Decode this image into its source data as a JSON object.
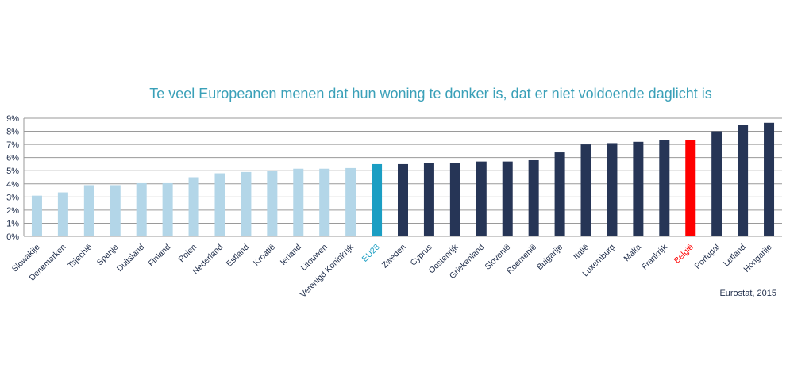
{
  "chart_data": {
    "type": "bar",
    "title": "Te veel Europeanen menen dat hun woning te donker is, dat er niet voldoende daglicht is",
    "source": "Eurostat, 2015",
    "xlabel": "",
    "ylabel": "",
    "ylim": [
      0,
      9
    ],
    "yticks": [
      "0%",
      "1%",
      "2%",
      "3%",
      "4%",
      "5%",
      "6%",
      "7%",
      "8%",
      "9%"
    ],
    "grid": true,
    "categories": [
      "Slowakije",
      "Denemarken",
      "Tsjechië",
      "Spanje",
      "Duitsland",
      "Finland",
      "Polen",
      "Nederland",
      "Estland",
      "Kroatië",
      "Ierland",
      "Litouwen",
      "Verenigd Koninkrijk",
      "EU28",
      "Zweden",
      "Cyprus",
      "Oostenrijk",
      "Griekenland",
      "Slovenië",
      "Roemenië",
      "Bulgarije",
      "Italië",
      "Luxemburg",
      "Malta",
      "Frankrijk",
      "België",
      "Portugal",
      "Letland",
      "Hongarije"
    ],
    "values": [
      3.1,
      3.35,
      3.9,
      3.9,
      4.05,
      4.05,
      4.5,
      4.8,
      4.9,
      5.0,
      5.15,
      5.15,
      5.2,
      5.5,
      5.5,
      5.6,
      5.6,
      5.7,
      5.7,
      5.8,
      6.4,
      7.0,
      7.1,
      7.2,
      7.35,
      7.35,
      8.0,
      8.5,
      8.65
    ],
    "colors": {
      "below_eu": "#b3d6e8",
      "eu28": "#1b9ec3",
      "above_eu": "#263556",
      "highlight": "#ff0000",
      "title": "#3aa0b8",
      "label": "#1f2d4a"
    }
  }
}
